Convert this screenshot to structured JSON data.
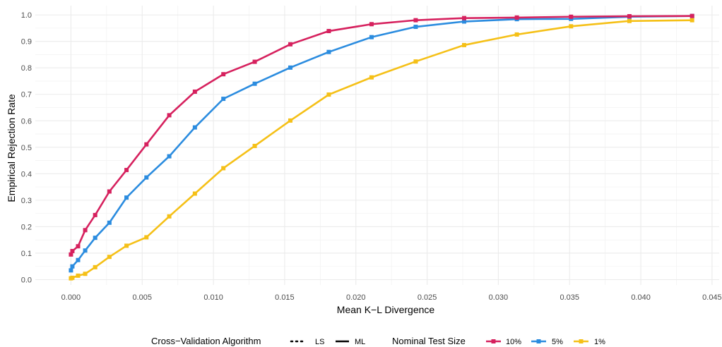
{
  "chart_data": {
    "type": "line",
    "xlabel": "Mean K−L Divergence",
    "ylabel": "Empirical Rejection Rate",
    "xlim": [
      -0.0025,
      0.0455
    ],
    "ylim": [
      -0.02,
      1.035
    ],
    "x_ticks": [
      "0.000",
      "0.005",
      "0.010",
      "0.015",
      "0.020",
      "0.025",
      "0.030",
      "0.035",
      "0.040",
      "0.045"
    ],
    "y_ticks": [
      "0.0",
      "0.1",
      "0.2",
      "0.3",
      "0.4",
      "0.5",
      "0.6",
      "0.7",
      "0.8",
      "0.9",
      "1.0"
    ],
    "grid": true,
    "legend_position": "bottom",
    "x": [
      0.0,
      0.0001,
      0.0005,
      0.001,
      0.0017,
      0.0027,
      0.0039,
      0.0053,
      0.0069,
      0.0087,
      0.0107,
      0.0129,
      0.0154,
      0.0181,
      0.0211,
      0.0242,
      0.0276,
      0.0313,
      0.0351,
      0.0392,
      0.0436
    ],
    "series": [
      {
        "name": "10%",
        "color": "#d6215e",
        "values": [
          0.095,
          0.108,
          0.126,
          0.187,
          0.244,
          0.333,
          0.414,
          0.511,
          0.621,
          0.71,
          0.776,
          0.823,
          0.889,
          0.939,
          0.965,
          0.98,
          0.988,
          0.99,
          0.993,
          0.995,
          0.996
        ]
      },
      {
        "name": "5%",
        "color": "#2b8cdf",
        "values": [
          0.035,
          0.05,
          0.074,
          0.11,
          0.158,
          0.215,
          0.31,
          0.386,
          0.466,
          0.575,
          0.683,
          0.74,
          0.801,
          0.86,
          0.916,
          0.955,
          0.975,
          0.984,
          0.985,
          0.993,
          0.996
        ]
      },
      {
        "name": "1%",
        "color": "#f5c017",
        "values": [
          0.005,
          0.007,
          0.015,
          0.022,
          0.047,
          0.086,
          0.128,
          0.16,
          0.239,
          0.325,
          0.421,
          0.505,
          0.601,
          0.699,
          0.764,
          0.824,
          0.886,
          0.926,
          0.957,
          0.977,
          0.98
        ]
      }
    ],
    "legend": {
      "algorithm_title": "Cross−Validation Algorithm",
      "algorithm_items": [
        {
          "label": "LS",
          "linetype": "dotted"
        },
        {
          "label": "ML",
          "linetype": "solid"
        }
      ],
      "size_title": "Nominal Test Size",
      "size_items": [
        {
          "label": "10%",
          "color": "#d6215e"
        },
        {
          "label": "5%",
          "color": "#2b8cdf"
        },
        {
          "label": "1%",
          "color": "#f5c017"
        }
      ]
    }
  }
}
